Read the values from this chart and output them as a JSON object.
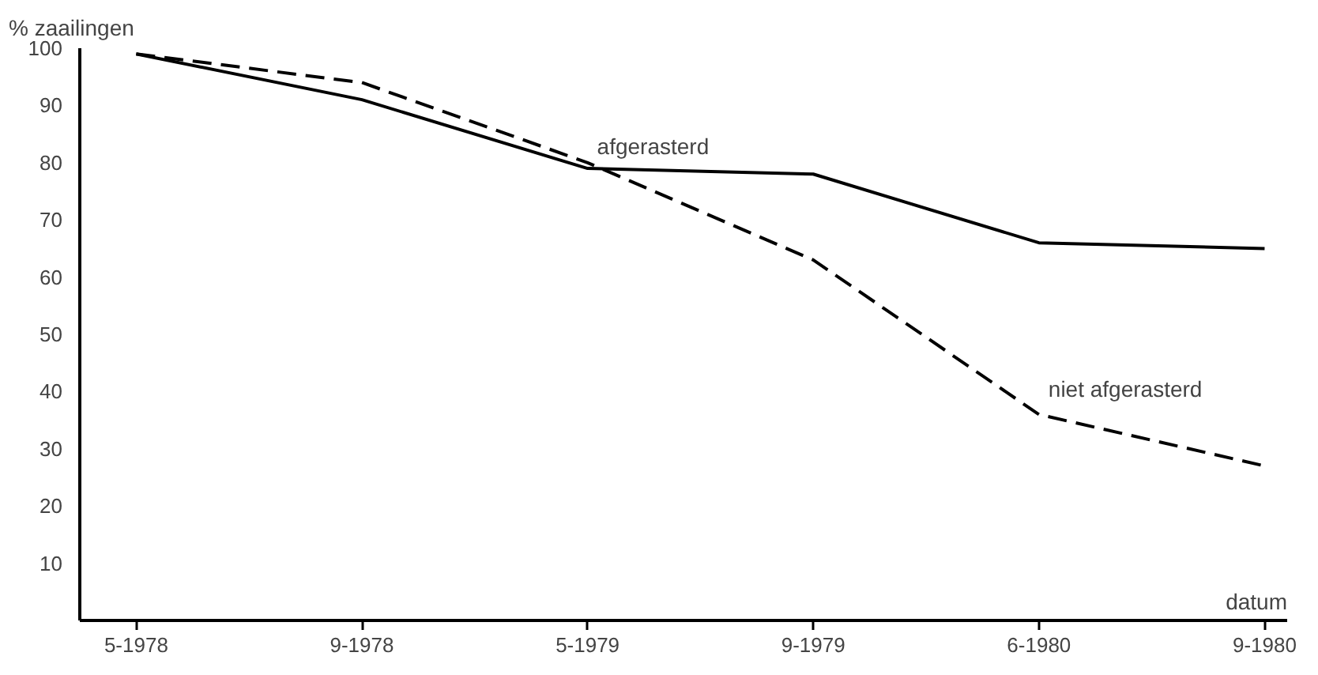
{
  "chart_data": {
    "type": "line",
    "ylabel": "% zaailingen",
    "xlabel": "datum",
    "categories": [
      "5-1978",
      "9-1978",
      "5-1979",
      "9-1979",
      "6-1980",
      "9-1980"
    ],
    "series": [
      {
        "name": "afgerasterd",
        "color": "#000000",
        "values": [
          99,
          91,
          79,
          78,
          66,
          65
        ],
        "line_style": "solid"
      },
      {
        "name": "niet afgerasterd",
        "color": "#000000",
        "values": [
          99,
          94,
          80,
          63,
          36,
          27
        ],
        "line_style": "dashed"
      }
    ],
    "ylim": [
      0,
      100
    ],
    "yticks": [
      10,
      20,
      30,
      40,
      50,
      60,
      70,
      80,
      90,
      100
    ],
    "grid": false,
    "marker": "none"
  }
}
